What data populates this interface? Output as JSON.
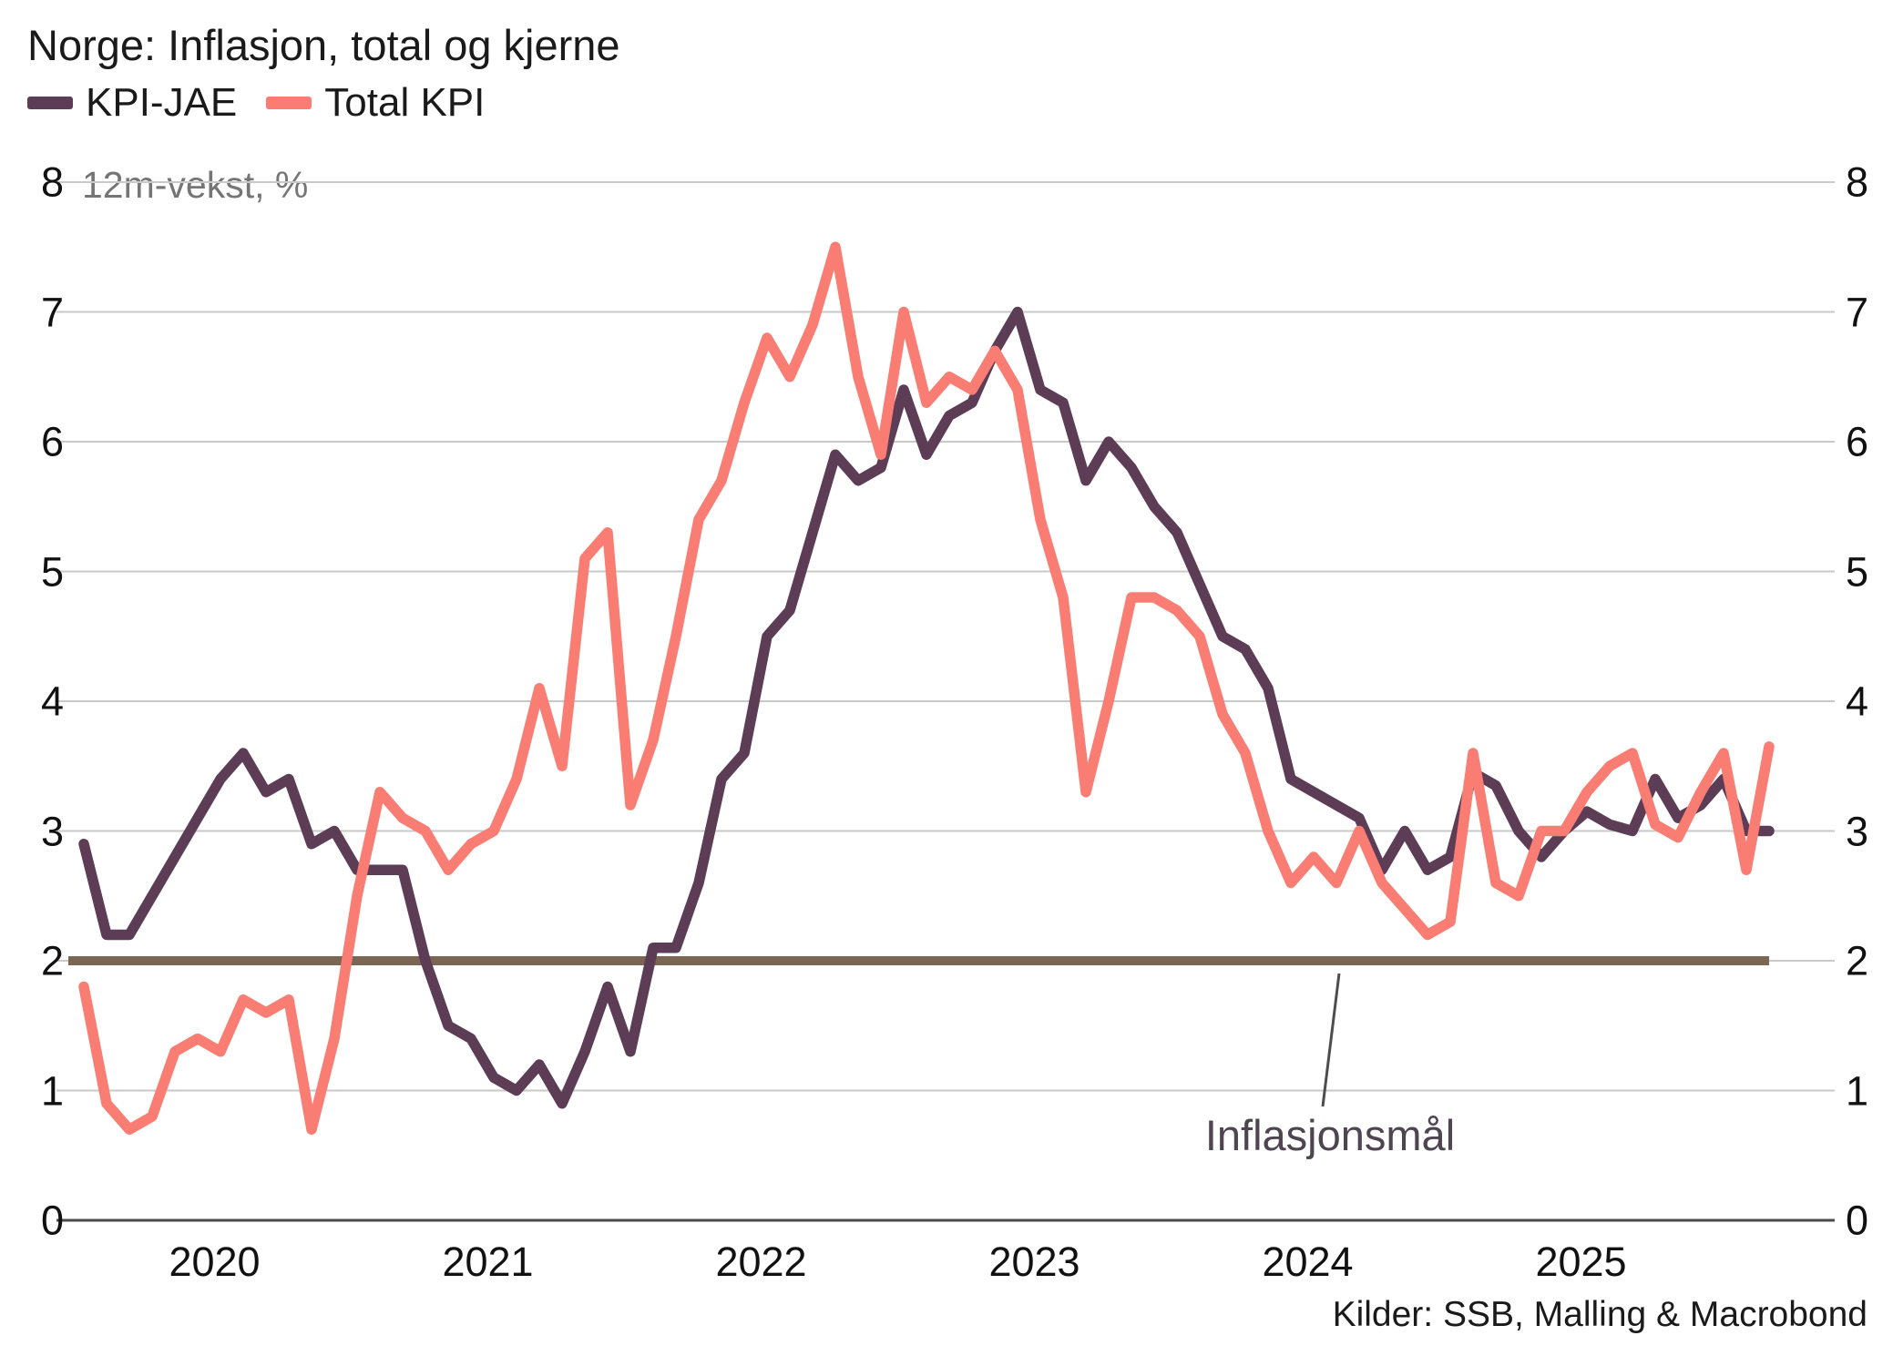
{
  "header": {
    "title": "Norge: Inflasjon, total og kjerne"
  },
  "subtitle": "12m-vekst, %",
  "legend": [
    {
      "label": "KPI-JAE",
      "color": "#5d3c55"
    },
    {
      "label": "Total KPI",
      "color": "#f97d73"
    }
  ],
  "annotation": {
    "label": "Inflasjonsmål"
  },
  "source": "Kilder: SSB, Malling & Macrobond",
  "colors": {
    "kpi_jae": "#5d3c55",
    "total_kpi": "#f97d73",
    "target_line": "#7b6553",
    "gridline": "#c9c9c9",
    "axis_line": "#4b4b4b",
    "pointer_line": "#4d4d4d",
    "subtitle_text": "#757575",
    "annotation_text": "#4e4550",
    "background": "#ffffff"
  },
  "chart_data": {
    "type": "line",
    "title": "Norge: Inflasjon, total og kjerne",
    "unit_note": "12m-vekst, %",
    "start_month": "2020-01",
    "frequency": "monthly",
    "ylim": [
      0,
      8
    ],
    "y_ticks": [
      "0",
      "1",
      "2",
      "3",
      "4",
      "5",
      "6",
      "7",
      "8"
    ],
    "y_axis_sides": [
      "left",
      "right"
    ],
    "x_tick_labels": [
      "2020",
      "2021",
      "2022",
      "2023",
      "2024",
      "2025"
    ],
    "grid": "horizontal",
    "legend_position": "top-left",
    "target_line": {
      "value": 2,
      "label": "Inflasjonsmål"
    },
    "series": [
      {
        "name": "KPI-JAE",
        "values": [
          2.9,
          2.2,
          2.2,
          2.5,
          2.8,
          3.1,
          3.4,
          3.6,
          3.3,
          3.4,
          2.9,
          3.0,
          2.7,
          2.7,
          2.7,
          2.0,
          1.5,
          1.4,
          1.1,
          1.0,
          1.2,
          0.9,
          1.3,
          1.8,
          1.3,
          2.1,
          2.1,
          2.6,
          3.4,
          3.6,
          4.5,
          4.7,
          5.3,
          5.9,
          5.7,
          5.8,
          6.4,
          5.9,
          6.2,
          6.3,
          6.7,
          7.0,
          6.4,
          6.3,
          5.7,
          6.0,
          5.8,
          5.5,
          5.3,
          4.9,
          4.5,
          4.4,
          4.1,
          3.4,
          3.3,
          3.2,
          3.1,
          2.7,
          3.0,
          2.7,
          2.8,
          3.45,
          3.35,
          3.0,
          2.8,
          3.0,
          3.15,
          3.05,
          3.0,
          3.4,
          3.1,
          3.2,
          3.4,
          3.0,
          3.0
        ]
      },
      {
        "name": "Total KPI",
        "values": [
          1.8,
          0.9,
          0.7,
          0.8,
          1.3,
          1.4,
          1.3,
          1.7,
          1.6,
          1.7,
          0.7,
          1.4,
          2.5,
          3.3,
          3.1,
          3.0,
          2.7,
          2.9,
          3.0,
          3.4,
          4.1,
          3.5,
          5.1,
          5.3,
          3.2,
          3.7,
          4.5,
          5.4,
          5.7,
          6.3,
          6.8,
          6.5,
          6.9,
          7.5,
          6.5,
          5.9,
          7.0,
          6.3,
          6.5,
          6.4,
          6.7,
          6.4,
          5.4,
          4.8,
          3.3,
          4.0,
          4.8,
          4.8,
          4.7,
          4.5,
          3.9,
          3.6,
          3.0,
          2.6,
          2.8,
          2.6,
          3.0,
          2.6,
          2.4,
          2.2,
          2.3,
          3.6,
          2.6,
          2.5,
          3.0,
          3.0,
          3.3,
          3.5,
          3.6,
          3.05,
          2.95,
          3.3,
          3.6,
          2.7,
          3.65
        ]
      }
    ]
  }
}
